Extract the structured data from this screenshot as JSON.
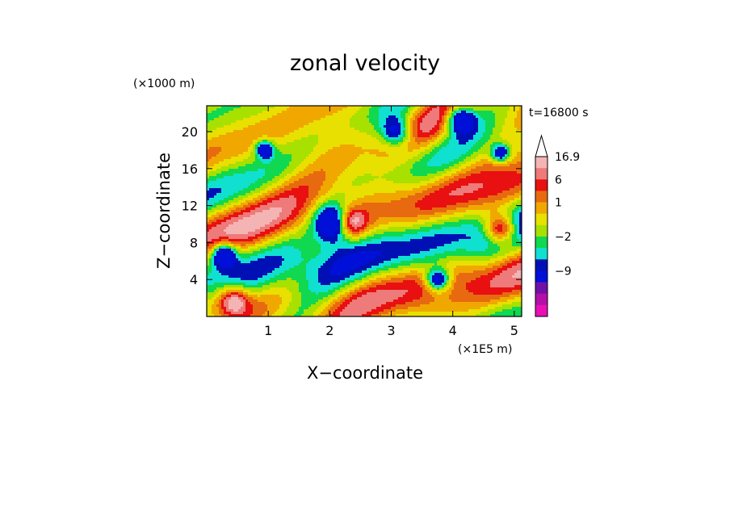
{
  "chart_data": {
    "type": "heatmap",
    "title": "zonal velocity",
    "xlabel": "X−coordinate",
    "ylabel": "Z−coordinate",
    "x_unit": "(×1E5 m)",
    "y_unit": "(×1000 m)",
    "time_label": "t=16800 s",
    "xlim": [
      0,
      5.12
    ],
    "ylim": [
      0,
      22.8
    ],
    "x_ticks": [
      {
        "value": 1,
        "label": "1"
      },
      {
        "value": 2,
        "label": "2"
      },
      {
        "value": 3,
        "label": "3"
      },
      {
        "value": 4,
        "label": "4"
      },
      {
        "value": 5,
        "label": "5"
      }
    ],
    "y_ticks": [
      {
        "value": 4,
        "label": "4"
      },
      {
        "value": 8,
        "label": "8"
      },
      {
        "value": 12,
        "label": "12"
      },
      {
        "value": 16,
        "label": "16"
      },
      {
        "value": 20,
        "label": "20"
      }
    ],
    "colorbar": {
      "max_label": "16.9",
      "levels_top_to_bottom": [
        "#f4b4b4",
        "#ee7a7a",
        "#e81010",
        "#e86a10",
        "#f0a800",
        "#e8e000",
        "#a8e000",
        "#10d850",
        "#10e0d0",
        "#0010b4",
        "#0010d8",
        "#7010a8",
        "#b410a8",
        "#e810b4"
      ],
      "labels": [
        {
          "level": 0,
          "text": "16.9"
        },
        {
          "level": 2,
          "text": "6"
        },
        {
          "level": 4,
          "text": "1"
        },
        {
          "level": 7,
          "text": "−2"
        },
        {
          "level": 10,
          "text": "−9"
        }
      ]
    }
  }
}
